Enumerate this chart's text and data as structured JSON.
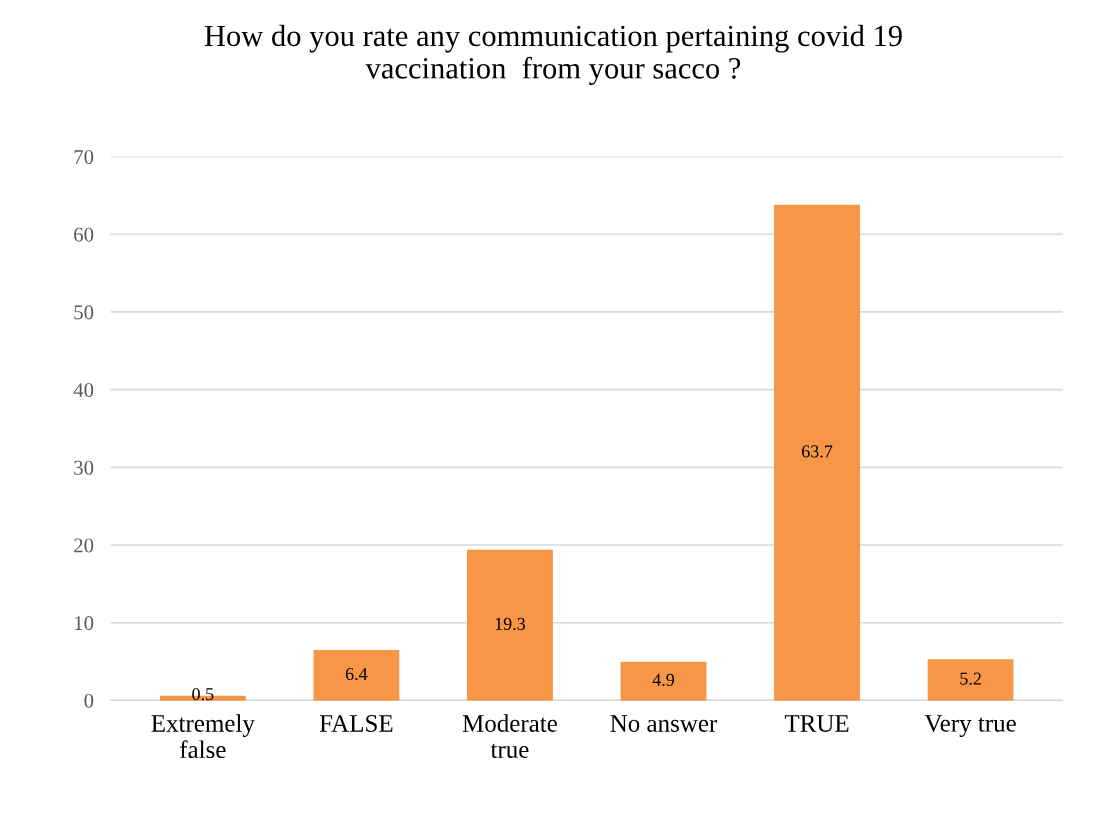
{
  "chart_data": {
    "type": "bar",
    "title": "How do you rate any communication pertaining covid 19\nvaccination  from your sacco ?",
    "categories": [
      "Extremely\nfalse",
      "FALSE",
      "Moderate\ntrue",
      "No answer",
      "TRUE",
      "Very true"
    ],
    "values": [
      0.5,
      6.4,
      19.3,
      4.9,
      63.7,
      5.2
    ],
    "color": "#f79646",
    "ylim": [
      0,
      70
    ],
    "yticks": [
      0,
      10,
      20,
      30,
      40,
      50,
      60,
      70
    ],
    "grid": "y",
    "data_labels": true
  }
}
